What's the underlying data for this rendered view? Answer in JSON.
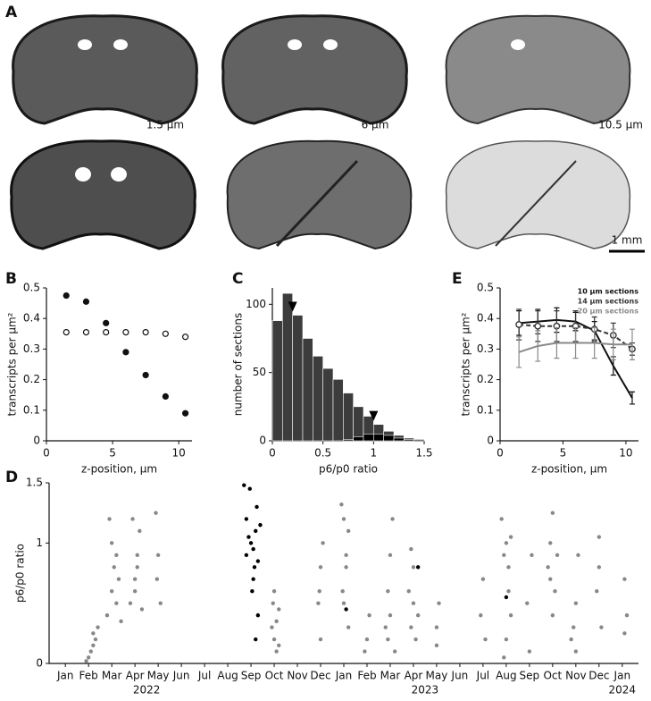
{
  "labels": {
    "a": "A",
    "b": "B",
    "c": "C",
    "d": "D",
    "e": "E"
  },
  "panel_a": {
    "images": [
      "1.5 μm",
      "6 μm",
      "10.5 μm"
    ],
    "scale_bar": "1 mm"
  },
  "chart_data": [
    {
      "type": "scatter",
      "xlabel": "z-position, μm",
      "ylabel": "transcripts per μm²",
      "x": [
        1.5,
        3,
        4.5,
        6,
        7.5,
        9,
        10.5
      ],
      "series": [
        {
          "color": "#111111",
          "marker": "filled",
          "values": [
            0.475,
            0.455,
            0.385,
            0.29,
            0.215,
            0.145,
            0.09
          ]
        },
        {
          "color": "#111111",
          "marker": "open",
          "values": [
            0.355,
            0.355,
            0.355,
            0.355,
            0.355,
            0.35,
            0.34
          ]
        }
      ],
      "xlim": [
        0,
        11
      ],
      "xticks": [
        0,
        5,
        10
      ],
      "ylim": [
        0,
        0.5
      ],
      "yticks": [
        0,
        0.1,
        0.2,
        0.3,
        0.4,
        0.5
      ]
    },
    {
      "type": "histogram",
      "xlabel": "p6/p0 ratio",
      "ylabel": "number of sections",
      "bins": [
        0,
        0.1,
        0.2,
        0.3,
        0.4,
        0.5,
        0.6,
        0.7,
        0.8,
        0.9,
        1.0,
        1.1,
        1.2,
        1.3,
        1.4,
        1.5
      ],
      "series": [
        {
          "color": "#3c3c3c",
          "values": [
            88,
            108,
            92,
            75,
            62,
            53,
            45,
            35,
            25,
            18,
            12,
            7,
            4,
            2,
            1
          ]
        },
        {
          "color": "#000000",
          "values": [
            0,
            0,
            0,
            0,
            0,
            0,
            0,
            1,
            3,
            5,
            5,
            4,
            2,
            1,
            0
          ]
        }
      ],
      "arrows": [
        0.2,
        1
      ],
      "xlim": [
        0,
        1.5
      ],
      "xticks": [
        0,
        0.5,
        1,
        1.5
      ],
      "ylim": [
        0,
        112
      ],
      "yticks": [
        0,
        50,
        100
      ]
    },
    {
      "type": "line",
      "xlabel": "z-position, μm",
      "ylabel": "transcripts per μm²",
      "legend": "upper right",
      "x": [
        1.5,
        3,
        4.5,
        6,
        7.5,
        9,
        10.5
      ],
      "series": [
        {
          "name": "10 μm sections",
          "color": "#111111",
          "dash": false,
          "marker": "none",
          "values": [
            0.385,
            0.39,
            0.395,
            0.39,
            0.36,
            0.245,
            0.14
          ],
          "errors": [
            0.04,
            0.04,
            0.04,
            0.03,
            0.03,
            0.03,
            0.02
          ]
        },
        {
          "name": "14 μm sections",
          "color": "#333333",
          "dash": true,
          "marker": "open",
          "values": [
            0.38,
            0.375,
            0.375,
            0.375,
            0.365,
            0.345,
            0.3
          ],
          "errors": [
            0.05,
            0.05,
            0.05,
            0.05,
            0.04,
            0.04,
            0.02
          ]
        },
        {
          "name": "20 μm sections",
          "color": "#8a8a8a",
          "dash": false,
          "marker": "none",
          "values": [
            0.29,
            0.31,
            0.32,
            0.32,
            0.32,
            0.315,
            0.315
          ],
          "errors": [
            0.05,
            0.05,
            0.05,
            0.05,
            0.05,
            0.05,
            0.05
          ]
        }
      ],
      "xlim": [
        0,
        11
      ],
      "xticks": [
        0,
        5,
        10
      ],
      "ylim": [
        0,
        0.5
      ],
      "yticks": [
        0,
        0.1,
        0.2,
        0.3,
        0.4,
        0.5
      ]
    },
    {
      "type": "timescatter",
      "ylabel": "p6/p0 ratio",
      "series": [
        {
          "color": "#888888",
          "x": [
            1.0,
            1.1,
            1.2,
            0.9,
            1.3,
            1.4,
            1.2,
            1.8,
            2.0,
            2.1,
            2.2,
            2.3,
            2.0,
            2.4,
            1.9,
            2.2,
            2.8,
            3.0,
            3.1,
            3.2,
            3.0,
            2.9,
            3.3,
            3.1,
            3.9,
            4.0,
            4.1,
            3.95,
            8.9,
            9.0,
            9.1,
            9.2,
            9.0,
            9.1,
            9.2,
            8.95,
            10.9,
            11.0,
            11.1,
            11.0,
            10.95,
            11.9,
            12.0,
            12.1,
            12.0,
            12.2,
            12.1,
            11.95,
            12.2,
            13.0,
            13.1,
            12.9,
            13.8,
            13.9,
            14.0,
            14.1,
            14.0,
            14.2,
            13.9,
            14.8,
            14.9,
            15.0,
            15.1,
            15.0,
            15.2,
            14.9,
            16.0,
            16.1,
            16.0,
            17.9,
            18.0,
            18.1,
            18.8,
            18.9,
            19.0,
            19.1,
            19.2,
            19.0,
            18.9,
            19.1,
            19.2,
            19.9,
            20.0,
            20.1,
            20.8,
            20.9,
            21.0,
            21.1,
            21.2,
            21.0,
            20.9,
            21.9,
            22.0,
            22.1,
            22.0,
            21.8,
            22.9,
            23.0,
            23.1,
            23.0,
            24.1,
            24.2,
            24.1
          ],
          "values": [
            0.05,
            0.1,
            0.15,
            0.02,
            0.2,
            0.3,
            0.25,
            0.4,
            0.6,
            0.8,
            0.5,
            0.7,
            1.0,
            0.35,
            1.2,
            0.9,
            0.5,
            0.7,
            0.9,
            1.1,
            0.6,
            1.2,
            0.45,
            0.8,
            1.25,
            0.9,
            0.5,
            0.7,
            0.3,
            0.2,
            0.1,
            0.45,
            0.6,
            0.35,
            0.15,
            0.5,
            0.5,
            0.8,
            1.0,
            0.2,
            0.6,
            1.32,
            1.2,
            0.8,
            0.5,
            0.3,
            0.9,
            0.6,
            1.1,
            0.2,
            0.4,
            0.1,
            0.3,
            0.6,
            0.9,
            1.2,
            0.4,
            0.1,
            0.2,
            0.6,
            0.3,
            0.8,
            0.2,
            0.5,
            0.4,
            0.95,
            0.3,
            0.5,
            0.15,
            0.4,
            0.7,
            0.2,
            1.2,
            0.9,
            1.0,
            0.6,
            0.4,
            0.2,
            0.05,
            0.8,
            1.05,
            0.5,
            0.1,
            0.9,
            0.8,
            1.0,
            1.25,
            0.6,
            0.9,
            0.4,
            0.7,
            0.3,
            0.1,
            0.9,
            0.5,
            0.2,
            0.6,
            1.05,
            0.3,
            0.8,
            0.7,
            0.4,
            0.25
          ]
        },
        {
          "color": "#000000",
          "x": [
            7.7,
            7.8,
            7.9,
            8.0,
            8.1,
            8.2,
            8.3,
            7.95,
            8.15,
            8.25,
            8.05,
            8.3,
            8.2,
            7.8,
            8.1,
            8.4,
            12.1,
            15.2,
            19.0
          ],
          "values": [
            1.48,
            1.2,
            1.05,
            1.0,
            0.95,
            1.1,
            0.85,
            1.45,
            0.8,
            1.3,
            0.6,
            0.4,
            0.2,
            0.9,
            0.7,
            1.15,
            0.45,
            0.8,
            0.55
          ]
        }
      ],
      "xlim": [
        -0.7,
        24.7
      ],
      "xticks": [
        {
          "value": 0,
          "label": "Jan"
        },
        {
          "value": 1,
          "label": "Feb"
        },
        {
          "value": 2,
          "label": "Mar"
        },
        {
          "value": 3,
          "label": "Apr"
        },
        {
          "value": 4,
          "label": "May"
        },
        {
          "value": 5,
          "label": "Jun"
        },
        {
          "value": 6,
          "label": "Jul"
        },
        {
          "value": 7,
          "label": "Aug"
        },
        {
          "value": 8,
          "label": "Sep"
        },
        {
          "value": 9,
          "label": "Oct"
        },
        {
          "value": 10,
          "label": "Nov"
        },
        {
          "value": 11,
          "label": "Dec"
        },
        {
          "value": 12,
          "label": "Jan"
        },
        {
          "value": 13,
          "label": "Feb"
        },
        {
          "value": 14,
          "label": "Mar"
        },
        {
          "value": 15,
          "label": "Apr"
        },
        {
          "value": 16,
          "label": "May"
        },
        {
          "value": 17,
          "label": "Jun"
        },
        {
          "value": 18,
          "label": "Jul"
        },
        {
          "value": 19,
          "label": "Aug"
        },
        {
          "value": 20,
          "label": "Sep"
        },
        {
          "value": 21,
          "label": "Oct"
        },
        {
          "value": 22,
          "label": "Nov"
        },
        {
          "value": 23,
          "label": "Dec"
        },
        {
          "value": 24,
          "label": "Jan"
        }
      ],
      "year_labels": [
        {
          "value": 3.5,
          "label": "2022"
        },
        {
          "value": 15.5,
          "label": "2023"
        },
        {
          "value": 24,
          "label": "2024"
        }
      ],
      "ylim": [
        0,
        1.5
      ],
      "yticks": [
        0,
        1,
        1.5
      ]
    }
  ]
}
